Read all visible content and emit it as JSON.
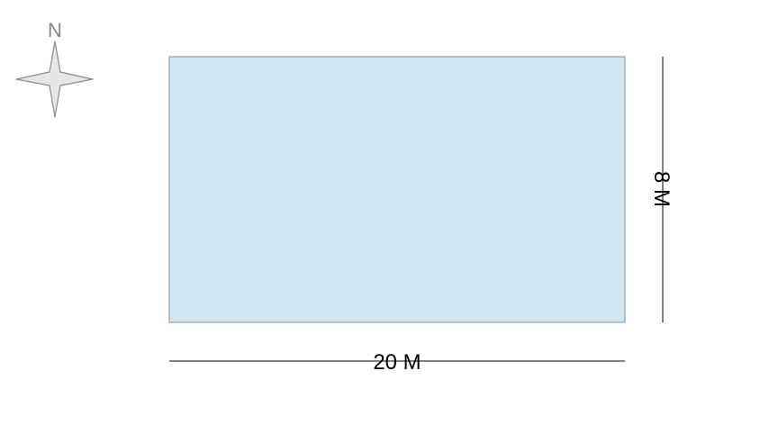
{
  "compass": {
    "north_label": "N",
    "icon": "compass-star-icon",
    "fill_color": "#e6e6e6",
    "stroke_color": "#8c8c8c"
  },
  "plot": {
    "fill_color": "#d0e6f2",
    "stroke_color": "#8f9ea6",
    "width_value": 20,
    "height_value": 8,
    "width_label": "20 M",
    "height_label": "8 M"
  }
}
